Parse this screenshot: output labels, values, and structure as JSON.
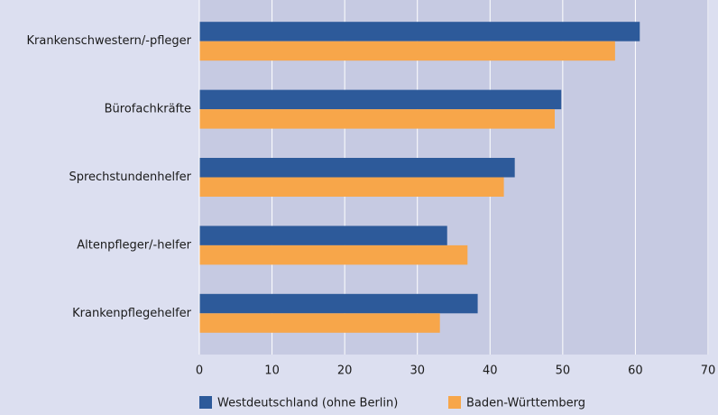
{
  "chart_data": {
    "type": "bar",
    "orientation": "horizontal",
    "categories": [
      "Krankenschwestern/-pfleger",
      "Bürofachkräfte",
      "Sprechstundenhelfer",
      "Altenpfleger/-helfer",
      "Krankenpflegehelfer"
    ],
    "series": [
      {
        "name": "Westdeutschland (ohne Berlin)",
        "color": "#2d5a9a",
        "values": [
          60.6,
          49.8,
          43.4,
          34.1,
          38.3
        ]
      },
      {
        "name": "Baden-Württemberg",
        "color": "#f7a64a",
        "values": [
          57.2,
          48.9,
          41.9,
          36.9,
          33.1
        ]
      }
    ],
    "xlim": [
      0,
      70
    ],
    "xticks": [
      0,
      10,
      20,
      30,
      40,
      50,
      60,
      70
    ],
    "grid": true
  }
}
